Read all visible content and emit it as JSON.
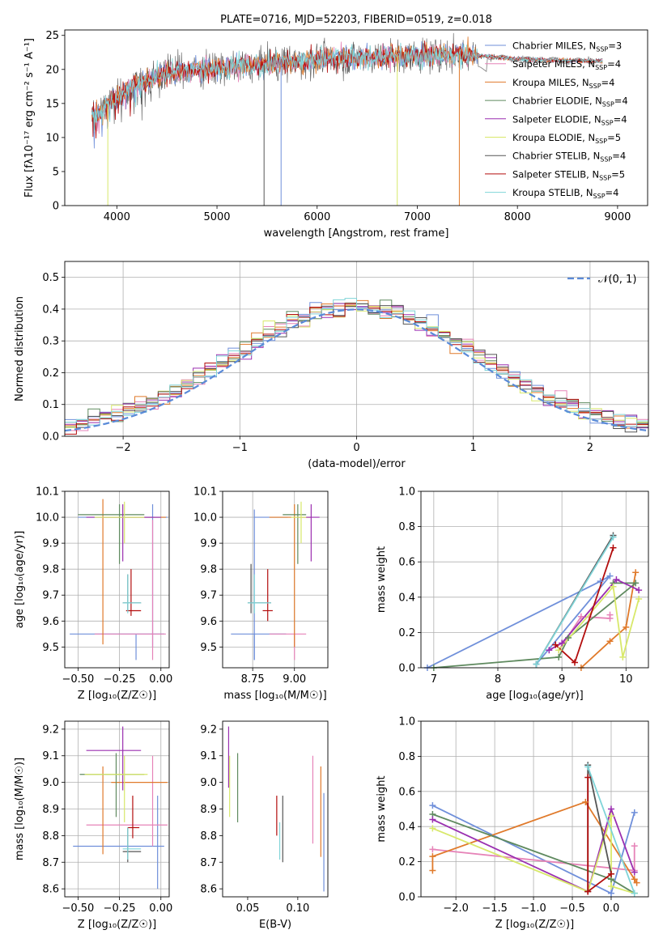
{
  "colors": {
    "chabrier_miles": "#6f8fda",
    "salpeter_miles": "#e683b8",
    "kroupa_miles": "#e07a2b",
    "chabrier_elodie": "#5f8a5f",
    "salpeter_elodie": "#9a2fb0",
    "kroupa_elodie": "#d8e86a",
    "chabrier_stelib": "#555555",
    "salpeter_stelib": "#b30d0d",
    "kroupa_stelib": "#7fd4d8",
    "normal": "#5a8ad8"
  },
  "chart_data": [
    {
      "id": "spectrum",
      "type": "line",
      "title": "PLATE=0716, MJD=52203, FIBERID=0519, z=0.018",
      "xlabel": "wavelength [Angstrom, rest frame]",
      "ylabel": "Flux [fλ10⁻¹⁷ erg cm⁻² s⁻¹ A⁻¹]",
      "xlim": [
        3480,
        9300
      ],
      "ylim": [
        0,
        25.8
      ],
      "xticks": [
        "4000",
        "5000",
        "6000",
        "7000",
        "8000",
        "9000"
      ],
      "yticks": [
        "0",
        "5",
        "10",
        "15",
        "20",
        "25"
      ],
      "legend_position": "upper right",
      "legend": [
        {
          "name": "Chabrier MILES, N",
          "sub": "SSP",
          "suffix": "=3",
          "color": "chabrier_miles"
        },
        {
          "name": "Salpeter MILES, N",
          "sub": "SSP",
          "suffix": "=4",
          "color": "salpeter_miles"
        },
        {
          "name": "Kroupa MILES, N",
          "sub": "SSP",
          "suffix": "=4",
          "color": "kroupa_miles"
        },
        {
          "name": "Chabrier ELODIE, N",
          "sub": "SSP",
          "suffix": "=4",
          "color": "chabrier_elodie"
        },
        {
          "name": "Salpeter ELODIE, N",
          "sub": "SSP",
          "suffix": "=4",
          "color": "salpeter_elodie"
        },
        {
          "name": "Kroupa ELODIE, N",
          "sub": "SSP",
          "suffix": "=5",
          "color": "kroupa_elodie"
        },
        {
          "name": "Chabrier STELIB, N",
          "sub": "SSP",
          "suffix": "=4",
          "color": "chabrier_stelib"
        },
        {
          "name": "Salpeter STELIB, N",
          "sub": "SSP",
          "suffix": "=5",
          "color": "salpeter_stelib"
        },
        {
          "name": "Kroupa STELIB, N",
          "sub": "SSP",
          "suffix": "=4",
          "color": "kroupa_stelib"
        }
      ],
      "continuum": [
        [
          3750,
          13
        ],
        [
          3850,
          14
        ],
        [
          3950,
          15.5
        ],
        [
          4100,
          17
        ],
        [
          4300,
          18.5
        ],
        [
          4500,
          19.5
        ],
        [
          5000,
          20.2
        ],
        [
          5500,
          20.8
        ],
        [
          6000,
          21.5
        ],
        [
          6500,
          21.8
        ],
        [
          7000,
          22
        ],
        [
          7500,
          22.2
        ],
        [
          8000,
          21.5
        ],
        [
          8500,
          21.3
        ],
        [
          8850,
          21.2
        ]
      ],
      "drops": [
        {
          "x": 3910,
          "y": 0,
          "color": "kroupa_elodie"
        },
        {
          "x": 5470,
          "y": 0,
          "color": "chabrier_stelib"
        },
        {
          "x": 5640,
          "y": 0,
          "color": "chabrier_miles"
        },
        {
          "x": 6800,
          "y": 0,
          "color": "kroupa_elodie"
        },
        {
          "x": 7420,
          "y": 0,
          "color": "kroupa_miles"
        }
      ]
    },
    {
      "id": "residuals",
      "type": "histogram",
      "xlabel": "(data-model)/error",
      "ylabel": "Normed distribution",
      "xlim": [
        -2.5,
        2.5
      ],
      "ylim": [
        0,
        0.55
      ],
      "xticks": [
        "−2",
        "−1",
        "0",
        "1",
        "2"
      ],
      "yticks": [
        "0.0",
        "0.1",
        "0.2",
        "0.3",
        "0.4",
        "0.5"
      ],
      "grid": true,
      "legend": "𝒩(0, 1)",
      "legend_position": "upper right",
      "bin_width": 0.1
    },
    {
      "id": "age_vs_Z",
      "type": "errorbar",
      "xlabel": "Z [log₁₀(Z/Z☉)]",
      "ylabel": "age  [log₁₀(age/yr)]",
      "xlim": [
        -0.58,
        0.05
      ],
      "ylim": [
        9.42,
        10.1
      ],
      "xticks": [
        "−0.50",
        "−0.25",
        "0.00"
      ],
      "yticks": [
        "9.5",
        "9.6",
        "9.7",
        "9.8",
        "9.9",
        "10.0",
        "10.1"
      ],
      "grid": true,
      "points": [
        {
          "x": -0.05,
          "y": 10.0,
          "ex": [
            -0.5,
            0.04
          ],
          "ey": [
            9.5,
            10.05
          ],
          "color": "chabrier_miles"
        },
        {
          "x": -0.15,
          "y": 9.55,
          "ex": [
            -0.55,
            0.02
          ],
          "ey": [
            9.45,
            9.55
          ],
          "color": "chabrier_miles"
        },
        {
          "x": -0.05,
          "y": 9.55,
          "ex": [
            -0.4,
            0.03
          ],
          "ey": [
            9.45,
            9.99
          ],
          "color": "salpeter_miles"
        },
        {
          "x": -0.35,
          "y": 10.0,
          "ex": [
            -0.35,
            0.03
          ],
          "ey": [
            9.51,
            10.07
          ],
          "color": "kroupa_miles"
        },
        {
          "x": -0.25,
          "y": 10.01,
          "ex": [
            -0.5,
            -0.1
          ],
          "ey": [
            9.82,
            10.05
          ],
          "color": "chabrier_elodie"
        },
        {
          "x": -0.23,
          "y": 10.0,
          "ex": [
            -0.45,
            0.0
          ],
          "ey": [
            9.83,
            10.05
          ],
          "color": "salpeter_elodie"
        },
        {
          "x": -0.22,
          "y": 10.0,
          "ex": [
            -0.4,
            -0.1
          ],
          "ey": [
            9.9,
            10.06
          ],
          "color": "kroupa_elodie"
        },
        {
          "x": -0.2,
          "y": 9.67,
          "ex": [
            -0.23,
            -0.12
          ],
          "ey": [
            9.64,
            9.78
          ],
          "color": "chabrier_stelib"
        },
        {
          "x": -0.18,
          "y": 9.64,
          "ex": [
            -0.21,
            -0.12
          ],
          "ey": [
            9.62,
            9.8
          ],
          "color": "salpeter_stelib"
        },
        {
          "x": -0.2,
          "y": 9.67,
          "ex": [
            -0.23,
            -0.12
          ],
          "ey": [
            9.63,
            9.78
          ],
          "color": "kroupa_stelib"
        }
      ]
    },
    {
      "id": "age_vs_mass",
      "type": "errorbar",
      "xlabel": "mass [log₁₀(M/M☉)]",
      "xlim": [
        8.57,
        9.2
      ],
      "ylim": [
        9.42,
        10.1
      ],
      "xticks": [
        "8.75",
        "9.00"
      ],
      "yticks": [
        "9.5",
        "9.6",
        "9.7",
        "9.8",
        "9.9",
        "10.0",
        "10.1"
      ],
      "grid": true,
      "points": [
        {
          "x": 8.76,
          "y": 10.0,
          "ex": [
            8.76,
            8.96
          ],
          "ey": [
            9.45,
            10.03
          ],
          "color": "chabrier_miles"
        },
        {
          "x": 8.76,
          "y": 9.55,
          "ex": [
            8.62,
            8.95
          ],
          "ey": [
            9.45,
            9.55
          ],
          "color": "chabrier_miles"
        },
        {
          "x": 9.0,
          "y": 9.55,
          "ex": [
            8.85,
            9.07
          ],
          "ey": [
            9.45,
            9.55
          ],
          "color": "salpeter_miles"
        },
        {
          "x": 9.0,
          "y": 10.0,
          "ex": [
            8.85,
            9.1
          ],
          "ey": [
            9.5,
            10.05
          ],
          "color": "kroupa_miles"
        },
        {
          "x": 9.02,
          "y": 10.01,
          "ex": [
            8.93,
            9.07
          ],
          "ey": [
            9.82,
            10.05
          ],
          "color": "chabrier_elodie"
        },
        {
          "x": 9.1,
          "y": 10.0,
          "ex": [
            9.02,
            9.15
          ],
          "ey": [
            9.83,
            10.05
          ],
          "color": "salpeter_elodie"
        },
        {
          "x": 9.04,
          "y": 10.0,
          "ex": [
            8.98,
            9.07
          ],
          "ey": [
            9.9,
            10.06
          ],
          "color": "kroupa_elodie"
        },
        {
          "x": 8.74,
          "y": 9.67,
          "ex": [
            8.72,
            8.86
          ],
          "ey": [
            9.63,
            9.82
          ],
          "color": "chabrier_stelib"
        },
        {
          "x": 8.84,
          "y": 9.64,
          "ex": [
            8.81,
            8.87
          ],
          "ey": [
            9.6,
            9.8
          ],
          "color": "salpeter_stelib"
        },
        {
          "x": 8.76,
          "y": 9.67,
          "ex": [
            8.72,
            8.86
          ],
          "ey": [
            9.63,
            9.78
          ],
          "color": "kroupa_stelib"
        }
      ]
    },
    {
      "id": "weight_vs_age",
      "type": "line",
      "xlabel": "age  [log₁₀(age/yr)]",
      "ylabel": "mass weight",
      "xlim": [
        6.8,
        10.35
      ],
      "ylim": [
        0,
        1.0
      ],
      "xticks": [
        "7",
        "8",
        "9",
        "10"
      ],
      "yticks": [
        "0.0",
        "0.2",
        "0.4",
        "0.6",
        "0.8",
        "1.0"
      ],
      "grid": true,
      "series": [
        {
          "color": "chabrier_miles",
          "x": [
            6.9,
            9.6,
            9.75,
            8.6
          ],
          "y": [
            0.0,
            0.49,
            0.52,
            0.02
          ]
        },
        {
          "color": "salpeter_miles",
          "x": [
            8.95,
            9.3,
            9.75,
            9.75
          ],
          "y": [
            0.1,
            0.29,
            0.28,
            0.3
          ]
        },
        {
          "color": "kroupa_miles",
          "x": [
            9.3,
            9.75,
            10.0,
            10.15
          ],
          "y": [
            0.0,
            0.15,
            0.23,
            0.54
          ]
        },
        {
          "color": "chabrier_elodie",
          "x": [
            7.0,
            8.95,
            9.1,
            10.15,
            9.8
          ],
          "y": [
            0.0,
            0.06,
            0.17,
            0.48,
            0.48
          ]
        },
        {
          "color": "salpeter_elodie",
          "x": [
            8.8,
            9.0,
            9.85,
            10.2
          ],
          "y": [
            0.1,
            0.14,
            0.5,
            0.44
          ]
        },
        {
          "color": "kroupa_elodie",
          "x": [
            8.95,
            9.8,
            9.95,
            10.2
          ],
          "y": [
            0.1,
            0.46,
            0.06,
            0.39
          ]
        },
        {
          "color": "chabrier_stelib",
          "x": [
            8.6,
            9.8
          ],
          "y": [
            0.02,
            0.75
          ]
        },
        {
          "color": "salpeter_stelib",
          "x": [
            8.9,
            9.2,
            9.8
          ],
          "y": [
            0.13,
            0.03,
            0.68
          ]
        },
        {
          "color": "kroupa_stelib",
          "x": [
            8.6,
            9.8
          ],
          "y": [
            0.02,
            0.74
          ]
        }
      ]
    },
    {
      "id": "mass_vs_Z",
      "type": "errorbar",
      "xlabel": "Z [log₁₀(Z/Z☉)]",
      "ylabel": "mass [log₁₀(M/M☉)]",
      "xlim": [
        -0.58,
        0.05
      ],
      "ylim": [
        8.57,
        9.23
      ],
      "xticks": [
        "−0.50",
        "−0.25",
        "0.00"
      ],
      "yticks": [
        "8.6",
        "8.7",
        "8.8",
        "8.9",
        "9.0",
        "9.1",
        "9.2"
      ],
      "grid": true,
      "points": [
        {
          "x": -0.02,
          "y": 8.76,
          "ex": [
            -0.53,
            0.02
          ],
          "ey": [
            8.6,
            8.95
          ],
          "color": "chabrier_miles"
        },
        {
          "x": -0.05,
          "y": 8.84,
          "ex": [
            -0.45,
            0.04
          ],
          "ey": [
            8.76,
            9.1
          ],
          "color": "salpeter_miles"
        },
        {
          "x": -0.35,
          "y": 9.0,
          "ex": [
            -0.3,
            0.04
          ],
          "ey": [
            8.73,
            9.06
          ],
          "color": "kroupa_miles"
        },
        {
          "x": -0.27,
          "y": 9.03,
          "ex": [
            -0.49,
            -0.1
          ],
          "ey": [
            8.87,
            9.11
          ],
          "color": "chabrier_elodie"
        },
        {
          "x": -0.23,
          "y": 9.12,
          "ex": [
            -0.45,
            -0.12
          ],
          "ey": [
            8.97,
            9.21
          ],
          "color": "salpeter_elodie"
        },
        {
          "x": -0.22,
          "y": 9.03,
          "ex": [
            -0.46,
            -0.08
          ],
          "ey": [
            8.85,
            9.1
          ],
          "color": "kroupa_elodie"
        },
        {
          "x": -0.2,
          "y": 8.74,
          "ex": [
            -0.23,
            -0.12
          ],
          "ey": [
            8.7,
            8.83
          ],
          "color": "chabrier_stelib"
        },
        {
          "x": -0.17,
          "y": 8.83,
          "ex": [
            -0.2,
            -0.13
          ],
          "ey": [
            8.79,
            8.95
          ],
          "color": "salpeter_stelib"
        },
        {
          "x": -0.2,
          "y": 8.75,
          "ex": [
            -0.23,
            -0.12
          ],
          "ey": [
            8.71,
            8.83
          ],
          "color": "kroupa_stelib"
        }
      ]
    },
    {
      "id": "mass_vs_ebv",
      "type": "errorbar",
      "xlabel": "E(B-V)",
      "xlim": [
        0.025,
        0.13
      ],
      "ylim": [
        8.57,
        9.23
      ],
      "xticks": [
        "0.05",
        "0.10"
      ],
      "yticks": [
        "8.6",
        "8.7",
        "8.8",
        "8.9",
        "9.0",
        "9.1",
        "9.2"
      ],
      "points": [
        {
          "x": 0.126,
          "y": 8.76,
          "ey": [
            8.59,
            8.96
          ],
          "color": "chabrier_miles"
        },
        {
          "x": 0.115,
          "y": 8.95,
          "ey": [
            8.77,
            9.1
          ],
          "color": "salpeter_miles"
        },
        {
          "x": 0.123,
          "y": 8.88,
          "ey": [
            8.72,
            9.06
          ],
          "color": "kroupa_miles"
        },
        {
          "x": 0.04,
          "y": 9.0,
          "ey": [
            8.85,
            9.11
          ],
          "color": "chabrier_elodie"
        },
        {
          "x": 0.031,
          "y": 9.12,
          "ey": [
            8.98,
            9.21
          ],
          "color": "salpeter_elodie"
        },
        {
          "x": 0.032,
          "y": 8.95,
          "ey": [
            8.87,
            9.1
          ],
          "color": "kroupa_elodie"
        },
        {
          "x": 0.085,
          "y": 8.83,
          "ey": [
            8.7,
            8.95
          ],
          "color": "chabrier_stelib"
        },
        {
          "x": 0.079,
          "y": 8.84,
          "ey": [
            8.8,
            8.95
          ],
          "color": "salpeter_stelib"
        },
        {
          "x": 0.082,
          "y": 8.79,
          "ey": [
            8.71,
            8.85
          ],
          "color": "kroupa_stelib"
        }
      ]
    },
    {
      "id": "weight_vs_Z",
      "type": "line",
      "xlabel": "Z [log₁₀(Z/Z☉)]",
      "ylabel": "mass weight",
      "xlim": [
        -2.45,
        0.48
      ],
      "ylim": [
        0,
        1.0
      ],
      "xticks": [
        "−2.0",
        "−1.5",
        "−1.0",
        "−0.5",
        "0.0"
      ],
      "yticks": [
        "0.0",
        "0.2",
        "0.4",
        "0.6",
        "0.8",
        "1.0"
      ],
      "grid": true,
      "series": [
        {
          "color": "chabrier_miles",
          "x": [
            -2.3,
            0.0,
            0.3
          ],
          "y": [
            0.52,
            0.02,
            0.48
          ]
        },
        {
          "color": "salpeter_miles",
          "x": [
            -2.3,
            0.3,
            0.3
          ],
          "y": [
            0.27,
            0.15,
            0.29
          ]
        },
        {
          "color": "kroupa_miles",
          "x": [
            -2.3,
            -2.3,
            -0.33,
            0.3,
            0.33
          ],
          "y": [
            0.15,
            0.23,
            0.54,
            0.1,
            0.08
          ]
        },
        {
          "color": "chabrier_elodie",
          "x": [
            -2.3,
            0.0,
            0.3
          ],
          "y": [
            0.47,
            0.1,
            0.02
          ]
        },
        {
          "color": "salpeter_elodie",
          "x": [
            -2.3,
            -0.3,
            0.0,
            0.3
          ],
          "y": [
            0.44,
            0.03,
            0.5,
            0.14
          ]
        },
        {
          "color": "kroupa_elodie",
          "x": [
            -2.3,
            -0.3,
            0.0,
            0.0,
            0.3
          ],
          "y": [
            0.39,
            0.03,
            0.46,
            0.06,
            0.02
          ]
        },
        {
          "color": "chabrier_stelib",
          "x": [
            -0.3,
            -0.3,
            0.0
          ],
          "y": [
            0.03,
            0.75,
            0.13
          ]
        },
        {
          "color": "salpeter_stelib",
          "x": [
            -0.3,
            -0.3,
            0.0
          ],
          "y": [
            0.68,
            0.03,
            0.13
          ]
        },
        {
          "color": "kroupa_stelib",
          "x": [
            -0.3,
            0.3
          ],
          "y": [
            0.74,
            0.02
          ]
        }
      ]
    }
  ]
}
